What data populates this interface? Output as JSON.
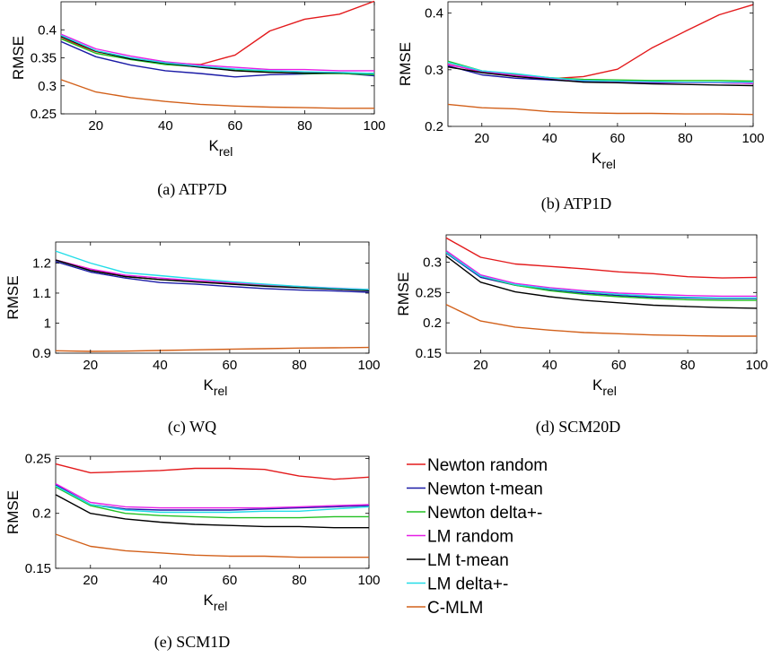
{
  "legend": {
    "items": [
      {
        "name": "Newton random",
        "color": "#e31a1c"
      },
      {
        "name": "Newton t-mean",
        "color": "#1a1aa6"
      },
      {
        "name": "Newton delta+-",
        "color": "#22c022"
      },
      {
        "name": "LM random",
        "color": "#e61ee6"
      },
      {
        "name": "LM t-mean",
        "color": "#000000"
      },
      {
        "name": "LM delta+-",
        "color": "#22dde8"
      },
      {
        "name": "C-MLM",
        "color": "#d2601a"
      }
    ]
  },
  "chart_data": [
    {
      "type": "line",
      "caption": "(a) ATP7D",
      "xlabel": "K",
      "xlabel_sub": "rel",
      "ylabel": "RMSE",
      "xlim": [
        10,
        100
      ],
      "ylim": [
        0.25,
        0.45
      ],
      "xticks": [
        20,
        40,
        60,
        80,
        100
      ],
      "yticks": [
        0.25,
        0.3,
        0.35,
        0.4
      ],
      "ytick_labels": [
        "0.25",
        "0.3",
        "0.35",
        "0.4"
      ],
      "x": [
        10,
        20,
        30,
        40,
        50,
        60,
        70,
        80,
        90,
        100
      ],
      "series": [
        {
          "name": "Newton random",
          "values": [
            0.385,
            0.361,
            0.349,
            0.341,
            0.338,
            0.355,
            0.398,
            0.419,
            0.428,
            0.451
          ]
        },
        {
          "name": "Newton t-mean",
          "values": [
            0.379,
            0.352,
            0.337,
            0.327,
            0.322,
            0.316,
            0.32,
            0.321,
            0.323,
            0.318
          ]
        },
        {
          "name": "Newton delta+-",
          "values": [
            0.384,
            0.358,
            0.347,
            0.338,
            0.334,
            0.328,
            0.325,
            0.322,
            0.322,
            0.32
          ]
        },
        {
          "name": "LM random",
          "values": [
            0.392,
            0.366,
            0.353,
            0.343,
            0.337,
            0.333,
            0.329,
            0.329,
            0.327,
            0.327
          ]
        },
        {
          "name": "LM t-mean",
          "values": [
            0.388,
            0.362,
            0.348,
            0.34,
            0.333,
            0.327,
            0.324,
            0.323,
            0.323,
            0.322
          ]
        },
        {
          "name": "LM delta+-",
          "values": [
            0.39,
            0.363,
            0.35,
            0.341,
            0.335,
            0.33,
            0.327,
            0.325,
            0.324,
            0.322
          ]
        },
        {
          "name": "C-MLM",
          "values": [
            0.311,
            0.289,
            0.279,
            0.272,
            0.267,
            0.264,
            0.262,
            0.261,
            0.26,
            0.26
          ]
        }
      ]
    },
    {
      "type": "line",
      "caption": "(b) ATP1D",
      "xlabel": "K",
      "xlabel_sub": "rel",
      "ylabel": "RMSE",
      "xlim": [
        10,
        100
      ],
      "ylim": [
        0.2,
        0.42
      ],
      "xticks": [
        20,
        40,
        60,
        80,
        100
      ],
      "yticks": [
        0.2,
        0.3,
        0.4
      ],
      "ytick_labels": [
        "0.2",
        "0.3",
        "0.4"
      ],
      "x": [
        10,
        20,
        30,
        40,
        50,
        60,
        70,
        80,
        90,
        100
      ],
      "series": [
        {
          "name": "Newton random",
          "values": [
            0.31,
            0.296,
            0.288,
            0.284,
            0.288,
            0.301,
            0.338,
            0.368,
            0.397,
            0.415
          ]
        },
        {
          "name": "Newton t-mean",
          "values": [
            0.307,
            0.291,
            0.285,
            0.282,
            0.279,
            0.278,
            0.277,
            0.277,
            0.277,
            0.276
          ]
        },
        {
          "name": "Newton delta+-",
          "values": [
            0.315,
            0.298,
            0.292,
            0.286,
            0.283,
            0.282,
            0.281,
            0.281,
            0.281,
            0.28
          ]
        },
        {
          "name": "LM random",
          "values": [
            0.309,
            0.297,
            0.29,
            0.285,
            0.281,
            0.279,
            0.278,
            0.277,
            0.277,
            0.276
          ]
        },
        {
          "name": "LM t-mean",
          "values": [
            0.305,
            0.295,
            0.288,
            0.283,
            0.278,
            0.277,
            0.275,
            0.274,
            0.273,
            0.272
          ]
        },
        {
          "name": "LM delta+-",
          "values": [
            0.313,
            0.298,
            0.293,
            0.286,
            0.281,
            0.28,
            0.279,
            0.278,
            0.278,
            0.278
          ]
        },
        {
          "name": "C-MLM",
          "values": [
            0.239,
            0.233,
            0.231,
            0.226,
            0.224,
            0.223,
            0.223,
            0.222,
            0.222,
            0.221
          ]
        }
      ]
    },
    {
      "type": "line",
      "caption": "(c) WQ",
      "xlabel": "K",
      "xlabel_sub": "rel",
      "ylabel": "RMSE",
      "xlim": [
        10,
        100
      ],
      "ylim": [
        0.9,
        1.27
      ],
      "xticks": [
        20,
        40,
        60,
        80,
        100
      ],
      "yticks": [
        0.9,
        1.0,
        1.1,
        1.2
      ],
      "ytick_labels": [
        "0.9",
        "1",
        "1.1",
        "1.2"
      ],
      "x": [
        10,
        20,
        30,
        40,
        50,
        60,
        70,
        80,
        90,
        100
      ],
      "series": [
        {
          "name": "Newton random",
          "values": [
            1.21,
            1.18,
            1.155,
            1.145,
            1.14,
            1.132,
            1.125,
            1.12,
            1.115,
            1.11
          ]
        },
        {
          "name": "Newton t-mean",
          "values": [
            1.205,
            1.17,
            1.15,
            1.135,
            1.13,
            1.122,
            1.115,
            1.11,
            1.107,
            1.103
          ]
        },
        {
          "name": "Newton delta+-",
          "values": [
            1.21,
            1.175,
            1.155,
            1.145,
            1.138,
            1.13,
            1.125,
            1.12,
            1.115,
            1.11
          ]
        },
        {
          "name": "LM random",
          "values": [
            1.21,
            1.18,
            1.16,
            1.15,
            1.142,
            1.135,
            1.128,
            1.122,
            1.117,
            1.112
          ]
        },
        {
          "name": "LM t-mean",
          "values": [
            1.21,
            1.175,
            1.155,
            1.145,
            1.137,
            1.13,
            1.123,
            1.118,
            1.113,
            1.108
          ]
        },
        {
          "name": "LM delta+-",
          "values": [
            1.24,
            1.2,
            1.168,
            1.158,
            1.148,
            1.138,
            1.13,
            1.122,
            1.116,
            1.112
          ]
        },
        {
          "name": "C-MLM",
          "values": [
            0.908,
            0.906,
            0.907,
            0.909,
            0.911,
            0.913,
            0.915,
            0.917,
            0.918,
            0.919
          ]
        }
      ]
    },
    {
      "type": "line",
      "caption": "(d) SCM20D",
      "xlabel": "K",
      "xlabel_sub": "rel",
      "ylabel": "RMSE",
      "xlim": [
        10,
        100
      ],
      "ylim": [
        0.15,
        0.345
      ],
      "xticks": [
        20,
        40,
        60,
        80,
        100
      ],
      "yticks": [
        0.15,
        0.2,
        0.25,
        0.3
      ],
      "ytick_labels": [
        "0.15",
        "0.2",
        "0.25",
        "0.3"
      ],
      "x": [
        10,
        20,
        30,
        40,
        50,
        60,
        70,
        80,
        90,
        100
      ],
      "series": [
        {
          "name": "Newton random",
          "values": [
            0.34,
            0.308,
            0.297,
            0.293,
            0.289,
            0.284,
            0.281,
            0.276,
            0.274,
            0.275
          ]
        },
        {
          "name": "Newton t-mean",
          "values": [
            0.315,
            0.275,
            0.262,
            0.254,
            0.249,
            0.245,
            0.242,
            0.241,
            0.24,
            0.24
          ]
        },
        {
          "name": "Newton delta+-",
          "values": [
            0.317,
            0.277,
            0.262,
            0.253,
            0.247,
            0.243,
            0.24,
            0.238,
            0.237,
            0.237
          ]
        },
        {
          "name": "LM random",
          "values": [
            0.319,
            0.279,
            0.265,
            0.258,
            0.253,
            0.249,
            0.247,
            0.245,
            0.244,
            0.244
          ]
        },
        {
          "name": "LM t-mean",
          "values": [
            0.31,
            0.267,
            0.251,
            0.243,
            0.237,
            0.233,
            0.229,
            0.227,
            0.225,
            0.224
          ]
        },
        {
          "name": "LM delta+-",
          "values": [
            0.316,
            0.277,
            0.263,
            0.256,
            0.251,
            0.247,
            0.244,
            0.242,
            0.241,
            0.241
          ]
        },
        {
          "name": "C-MLM",
          "values": [
            0.23,
            0.203,
            0.193,
            0.188,
            0.184,
            0.182,
            0.18,
            0.179,
            0.178,
            0.178
          ]
        }
      ]
    },
    {
      "type": "line",
      "caption": "(e) SCM1D",
      "xlabel": "K",
      "xlabel_sub": "rel",
      "ylabel": "RMSE",
      "xlim": [
        10,
        100
      ],
      "ylim": [
        0.15,
        0.252
      ],
      "xticks": [
        20,
        40,
        60,
        80,
        100
      ],
      "yticks": [
        0.15,
        0.2,
        0.25
      ],
      "ytick_labels": [
        "0.15",
        "0.2",
        "0.25"
      ],
      "x": [
        10,
        20,
        30,
        40,
        50,
        60,
        70,
        80,
        90,
        100
      ],
      "series": [
        {
          "name": "Newton random",
          "values": [
            0.245,
            0.237,
            0.238,
            0.239,
            0.241,
            0.241,
            0.24,
            0.234,
            0.231,
            0.233
          ]
        },
        {
          "name": "Newton t-mean",
          "values": [
            0.226,
            0.208,
            0.204,
            0.203,
            0.203,
            0.203,
            0.204,
            0.205,
            0.206,
            0.207
          ]
        },
        {
          "name": "Newton delta+-",
          "values": [
            0.224,
            0.207,
            0.2,
            0.198,
            0.197,
            0.196,
            0.196,
            0.196,
            0.197,
            0.197
          ]
        },
        {
          "name": "LM random",
          "values": [
            0.227,
            0.21,
            0.206,
            0.205,
            0.205,
            0.205,
            0.205,
            0.206,
            0.207,
            0.208
          ]
        },
        {
          "name": "LM t-mean",
          "values": [
            0.217,
            0.2,
            0.195,
            0.192,
            0.19,
            0.189,
            0.188,
            0.188,
            0.187,
            0.187
          ]
        },
        {
          "name": "LM delta+-",
          "values": [
            0.225,
            0.208,
            0.203,
            0.201,
            0.201,
            0.201,
            0.202,
            0.202,
            0.204,
            0.206
          ]
        },
        {
          "name": "C-MLM",
          "values": [
            0.181,
            0.17,
            0.166,
            0.164,
            0.162,
            0.161,
            0.161,
            0.16,
            0.16,
            0.16
          ]
        }
      ]
    }
  ]
}
